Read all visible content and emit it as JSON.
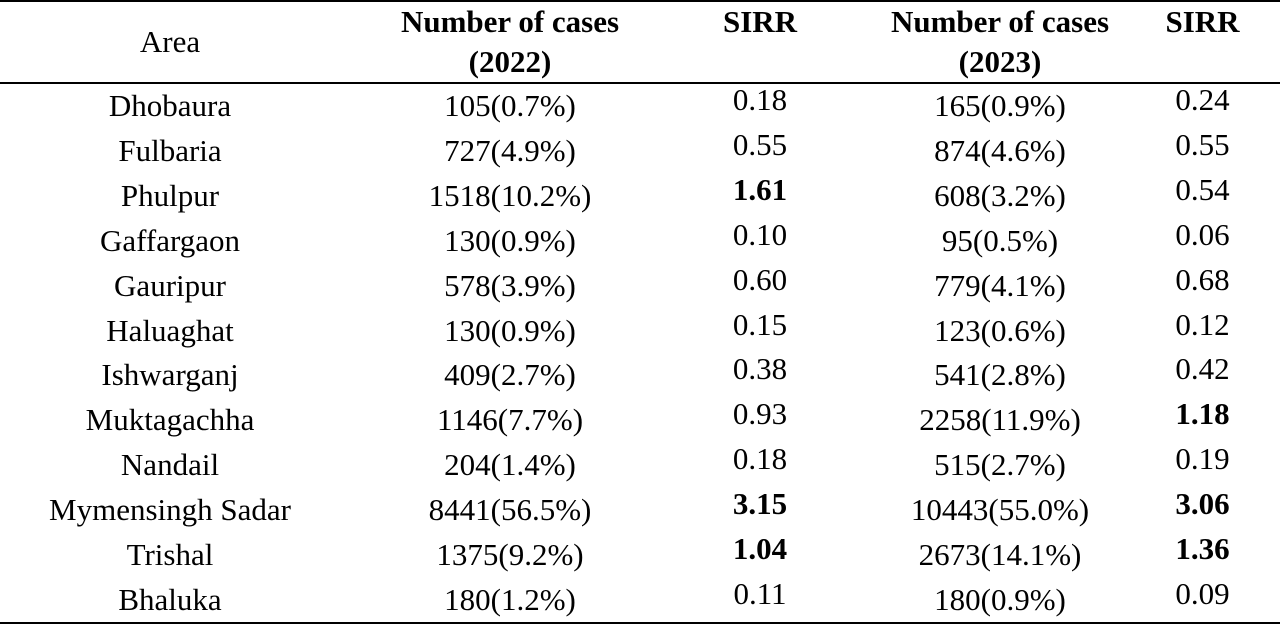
{
  "table": {
    "headers": {
      "area": "Area",
      "cases_2022_line1": "Number of cases",
      "cases_2022_line2": "(2022)",
      "sirr_2022": "SIRR",
      "cases_2023_line1": "Number of cases",
      "cases_2023_line2": "(2023)",
      "sirr_2023": "SIRR"
    },
    "rows": [
      {
        "area": "Dhobaura",
        "cases_2022": "105(0.7%)",
        "sirr_2022": "0.18",
        "sirr_2022_bold": false,
        "cases_2023": "165(0.9%)",
        "sirr_2023": "0.24",
        "sirr_2023_bold": false
      },
      {
        "area": "Fulbaria",
        "cases_2022": "727(4.9%)",
        "sirr_2022": "0.55",
        "sirr_2022_bold": false,
        "cases_2023": "874(4.6%)",
        "sirr_2023": "0.55",
        "sirr_2023_bold": false
      },
      {
        "area": "Phulpur",
        "cases_2022": "1518(10.2%)",
        "sirr_2022": "1.61",
        "sirr_2022_bold": true,
        "cases_2023": "608(3.2%)",
        "sirr_2023": "0.54",
        "sirr_2023_bold": false
      },
      {
        "area": "Gaffargaon",
        "cases_2022": "130(0.9%)",
        "sirr_2022": "0.10",
        "sirr_2022_bold": false,
        "cases_2023": "95(0.5%)",
        "sirr_2023": "0.06",
        "sirr_2023_bold": false
      },
      {
        "area": "Gauripur",
        "cases_2022": "578(3.9%)",
        "sirr_2022": "0.60",
        "sirr_2022_bold": false,
        "cases_2023": "779(4.1%)",
        "sirr_2023": "0.68",
        "sirr_2023_bold": false
      },
      {
        "area": "Haluaghat",
        "cases_2022": "130(0.9%)",
        "sirr_2022": "0.15",
        "sirr_2022_bold": false,
        "cases_2023": "123(0.6%)",
        "sirr_2023": "0.12",
        "sirr_2023_bold": false
      },
      {
        "area": "Ishwarganj",
        "cases_2022": "409(2.7%)",
        "sirr_2022": "0.38",
        "sirr_2022_bold": false,
        "cases_2023": "541(2.8%)",
        "sirr_2023": "0.42",
        "sirr_2023_bold": false
      },
      {
        "area": "Muktagachha",
        "cases_2022": "1146(7.7%)",
        "sirr_2022": "0.93",
        "sirr_2022_bold": false,
        "cases_2023": "2258(11.9%)",
        "sirr_2023": "1.18",
        "sirr_2023_bold": true
      },
      {
        "area": "Nandail",
        "cases_2022": "204(1.4%)",
        "sirr_2022": "0.18",
        "sirr_2022_bold": false,
        "cases_2023": "515(2.7%)",
        "sirr_2023": "0.19",
        "sirr_2023_bold": false
      },
      {
        "area": "Mymensingh Sadar",
        "cases_2022": "8441(56.5%)",
        "sirr_2022": "3.15",
        "sirr_2022_bold": true,
        "cases_2023": "10443(55.0%)",
        "sirr_2023": "3.06",
        "sirr_2023_bold": true
      },
      {
        "area": "Trishal",
        "cases_2022": "1375(9.2%)",
        "sirr_2022": "1.04",
        "sirr_2022_bold": true,
        "cases_2023": "2673(14.1%)",
        "sirr_2023": "1.36",
        "sirr_2023_bold": true
      },
      {
        "area": "Bhaluka",
        "cases_2022": "180(1.2%)",
        "sirr_2022": "0.11",
        "sirr_2022_bold": false,
        "cases_2023": "180(0.9%)",
        "sirr_2023": "0.09",
        "sirr_2023_bold": false
      }
    ]
  }
}
